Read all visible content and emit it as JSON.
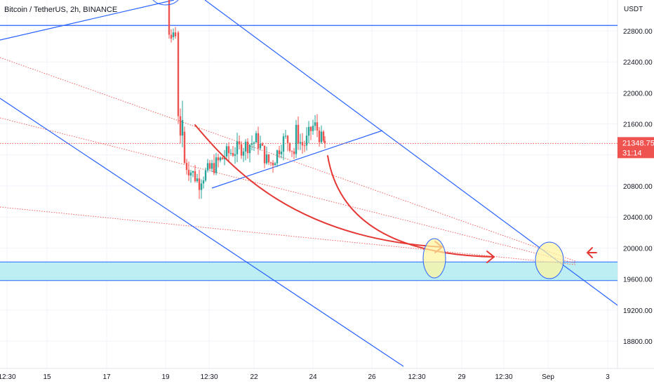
{
  "header": {
    "title": "Bitcoin / TetherUS, 2h, BINANCE"
  },
  "chart_data": {
    "type": "candlestick",
    "title": "Bitcoin / TetherUS, 2h, BINANCE",
    "y_axis": {
      "unit": "USDT",
      "ticks": [
        "22800.00",
        "22400.00",
        "22000.00",
        "21600.00",
        "21200.00",
        "20800.00",
        "20400.00",
        "20000.00",
        "19600.00",
        "19200.00",
        "18800.00"
      ],
      "tick_values": [
        22800,
        22400,
        22000,
        21600,
        21200,
        20800,
        20400,
        20000,
        19600,
        19200,
        18800
      ],
      "range": [
        18550,
        23100
      ]
    },
    "x_axis": {
      "ticks": [
        "12:30",
        "15",
        "17",
        "19",
        "12:30",
        "22",
        "24",
        "26",
        "12:30",
        "29",
        "12:30",
        "Sep",
        "3"
      ]
    },
    "last_price": {
      "value": "21348.75",
      "countdown": "31:14"
    },
    "colors": {
      "up": "#26a69a",
      "down": "#ef5350",
      "trendline": "#2962ff",
      "zone_fill": "#b2ebf2",
      "arrow": "#e53935",
      "target_circle": "#fff59d",
      "price_line": "#ef5350",
      "price_badge": "#ef5350"
    },
    "annotations": {
      "support_zone": [
        19580,
        19820
      ],
      "horizontal_resistance": 22870,
      "target_circles": 2,
      "projection_arrows": 3
    }
  }
}
